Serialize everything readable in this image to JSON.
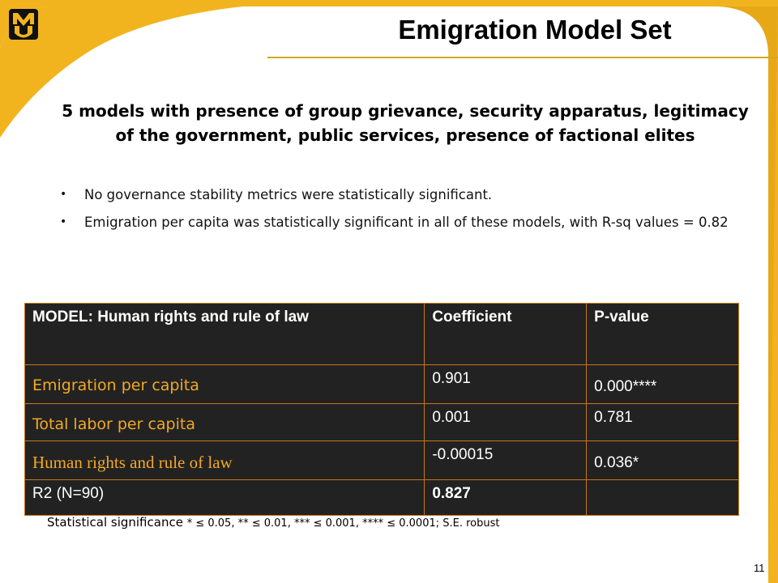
{
  "slide": {
    "title": "Emigration Model Set",
    "subtitle": "5 models with presence of group grievance, security apparatus, legitimacy of the government, public services, presence of factional elites",
    "bullets": [
      "No governance stability metrics were statistically significant.",
      "Emigration per capita was statistically significant in all of these models, with R-sq values = 0.82"
    ],
    "page_number": "11",
    "logo_text": "MU"
  },
  "table": {
    "headers": [
      "MODEL: Human rights and rule of law",
      "Coefficient",
      "P-value"
    ],
    "rows": [
      {
        "label": "Emigration per capita",
        "coef": "0.901",
        "pval": "0.000****"
      },
      {
        "label": "Total labor per capita",
        "coef": "0.001",
        "pval": "0.781"
      },
      {
        "label": "Human rights and rule of law",
        "coef": "-0.00015",
        "pval": "0.036*"
      }
    ],
    "r2": {
      "label": "R2 (N=90)",
      "coef": "0.827",
      "pval": ""
    }
  },
  "footnote": {
    "lead": "Statistical significance",
    "detail": "* ≤ 0.05, ** ≤ 0.01, *** ≤ 0.001, **** ≤ 0.0001; S.E. robust"
  },
  "colors": {
    "accent_gold": "#f2b41e",
    "table_bg": "#222222",
    "label_orange": "#f2a925"
  }
}
